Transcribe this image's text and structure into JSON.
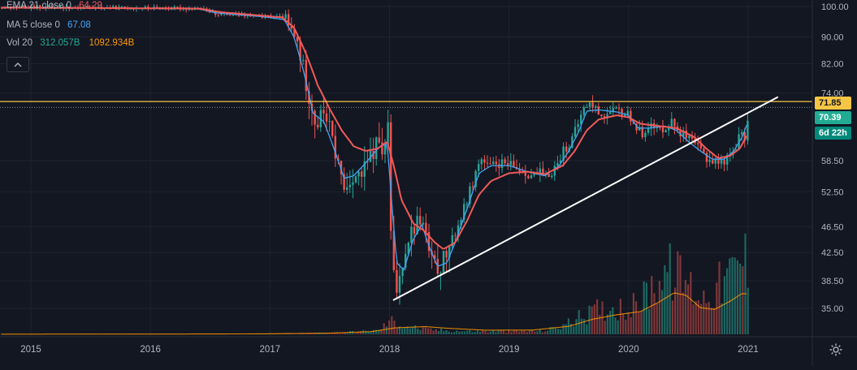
{
  "colors": {
    "background": "#131722",
    "grid": "#1f2330",
    "axis_text": "#b2b5be",
    "ema": "#f05a5a",
    "ma": "#42a5f5",
    "vol_label": "#22ab94",
    "vol_ma": "#ff9800",
    "up": "#26a69a",
    "down": "#ef5350",
    "horizontal_line": "#f7c544",
    "trend_line": "#ffffff",
    "countdown_bg": "#00897b"
  },
  "legend": [
    {
      "name": "EMA 21 close 0",
      "values": [
        "64.29"
      ],
      "color": "#f05a5a"
    },
    {
      "name": "MA 5 close 0",
      "values": [
        "67.08"
      ],
      "color": "#42a5f5"
    },
    {
      "name": "Vol 20",
      "values": [
        "312.057B",
        "1092.934B"
      ],
      "colors": [
        "#22ab94",
        "#ff9800"
      ]
    }
  ],
  "price_labels": {
    "line_level": "71.85",
    "last_price": "70.39",
    "countdown": "6d 22h"
  },
  "icons": {
    "collapse": "chevron-up-icon",
    "settings": "gear-icon"
  },
  "chart_data": {
    "type": "candlestick",
    "title": "",
    "xlabel": "",
    "ylabel": "",
    "x_ticks": [
      "2015",
      "2016",
      "2017",
      "2018",
      "2019",
      "2020",
      "2021"
    ],
    "y_ticks": [
      "100.00",
      "90.00",
      "82.00",
      "74.00",
      "58.50",
      "52.50",
      "46.50",
      "42.50",
      "38.50",
      "35.00"
    ],
    "y_scale": "log",
    "ylim": [
      32,
      101
    ],
    "xlim": [
      2014.7,
      2021.55
    ],
    "close_path": [
      [
        2014.75,
        99.6
      ],
      [
        2015.0,
        99.8
      ],
      [
        2015.3,
        99.7
      ],
      [
        2015.6,
        99.6
      ],
      [
        2015.9,
        99.5
      ],
      [
        2016.2,
        99.4
      ],
      [
        2016.4,
        99.2
      ],
      [
        2016.55,
        97.5
      ],
      [
        2016.75,
        97.0
      ],
      [
        2016.95,
        96.5
      ],
      [
        2017.1,
        96.2
      ],
      [
        2017.15,
        92.5
      ],
      [
        2017.22,
        88.0
      ],
      [
        2017.3,
        76.0
      ],
      [
        2017.38,
        66.0
      ],
      [
        2017.45,
        70.0
      ],
      [
        2017.5,
        64.0
      ],
      [
        2017.58,
        56.0
      ],
      [
        2017.62,
        52.5
      ],
      [
        2017.68,
        56.0
      ],
      [
        2017.75,
        55.0
      ],
      [
        2017.85,
        60.0
      ],
      [
        2017.9,
        63.0
      ],
      [
        2017.95,
        59.0
      ],
      [
        2017.98,
        67.0
      ],
      [
        2018.0,
        46.0
      ],
      [
        2018.03,
        38.5
      ],
      [
        2018.06,
        37.0
      ],
      [
        2018.1,
        41.5
      ],
      [
        2018.14,
        44.5
      ],
      [
        2018.2,
        46.5
      ],
      [
        2018.25,
        48.0
      ],
      [
        2018.3,
        45.0
      ],
      [
        2018.33,
        41.5
      ],
      [
        2018.38,
        40.0
      ],
      [
        2018.45,
        41.5
      ],
      [
        2018.52,
        44.5
      ],
      [
        2018.6,
        48.5
      ],
      [
        2018.7,
        55.0
      ],
      [
        2018.75,
        59.0
      ],
      [
        2018.82,
        57.0
      ],
      [
        2018.9,
        58.0
      ],
      [
        2019.0,
        57.5
      ],
      [
        2019.1,
        56.5
      ],
      [
        2019.2,
        55.5
      ],
      [
        2019.25,
        56.0
      ],
      [
        2019.3,
        55.0
      ],
      [
        2019.4,
        58.0
      ],
      [
        2019.45,
        61.0
      ],
      [
        2019.5,
        62.0
      ],
      [
        2019.55,
        65.0
      ],
      [
        2019.6,
        69.0
      ],
      [
        2019.65,
        71.5
      ],
      [
        2019.7,
        70.5
      ],
      [
        2019.75,
        69.0
      ],
      [
        2019.8,
        68.5
      ],
      [
        2019.9,
        69.5
      ],
      [
        2020.0,
        68.5
      ],
      [
        2020.05,
        66.0
      ],
      [
        2020.1,
        64.0
      ],
      [
        2020.15,
        66.5
      ],
      [
        2020.2,
        65.5
      ],
      [
        2020.25,
        65.0
      ],
      [
        2020.35,
        67.0
      ],
      [
        2020.45,
        64.0
      ],
      [
        2020.55,
        61.5
      ],
      [
        2020.6,
        60.5
      ],
      [
        2020.65,
        59.0
      ],
      [
        2020.7,
        58.5
      ],
      [
        2020.75,
        58.0
      ],
      [
        2020.82,
        59.0
      ],
      [
        2020.88,
        61.0
      ],
      [
        2020.92,
        64.0
      ],
      [
        2020.96,
        63.0
      ],
      [
        2020.99,
        67.0
      ],
      [
        2021.0,
        70.39
      ]
    ],
    "ema21": [
      [
        2014.75,
        99.6
      ],
      [
        2016.4,
        99.3
      ],
      [
        2016.6,
        98.0
      ],
      [
        2016.95,
        96.8
      ],
      [
        2017.1,
        96.3
      ],
      [
        2017.2,
        93.0
      ],
      [
        2017.3,
        85.0
      ],
      [
        2017.4,
        76.0
      ],
      [
        2017.5,
        70.0
      ],
      [
        2017.6,
        65.0
      ],
      [
        2017.7,
        61.5
      ],
      [
        2017.8,
        60.5
      ],
      [
        2017.9,
        61.0
      ],
      [
        2017.98,
        62.5
      ],
      [
        2018.03,
        58.0
      ],
      [
        2018.1,
        51.0
      ],
      [
        2018.2,
        47.0
      ],
      [
        2018.28,
        46.0
      ],
      [
        2018.38,
        44.0
      ],
      [
        2018.45,
        43.0
      ],
      [
        2018.55,
        44.0
      ],
      [
        2018.65,
        47.5
      ],
      [
        2018.75,
        52.0
      ],
      [
        2018.85,
        54.5
      ],
      [
        2019.0,
        56.0
      ],
      [
        2019.15,
        56.3
      ],
      [
        2019.3,
        55.8
      ],
      [
        2019.45,
        57.5
      ],
      [
        2019.55,
        60.5
      ],
      [
        2019.65,
        65.0
      ],
      [
        2019.75,
        67.5
      ],
      [
        2019.9,
        68.5
      ],
      [
        2020.0,
        68.0
      ],
      [
        2020.1,
        66.5
      ],
      [
        2020.25,
        66.0
      ],
      [
        2020.4,
        65.5
      ],
      [
        2020.55,
        63.5
      ],
      [
        2020.65,
        61.0
      ],
      [
        2020.75,
        59.0
      ],
      [
        2020.85,
        59.5
      ],
      [
        2020.93,
        61.0
      ],
      [
        2021.0,
        64.29
      ]
    ],
    "ma5": [
      [
        2014.75,
        99.6
      ],
      [
        2016.4,
        99.2
      ],
      [
        2016.55,
        97.8
      ],
      [
        2016.95,
        96.5
      ],
      [
        2017.12,
        95.5
      ],
      [
        2017.2,
        90.0
      ],
      [
        2017.28,
        80.0
      ],
      [
        2017.36,
        69.0
      ],
      [
        2017.45,
        67.0
      ],
      [
        2017.55,
        60.0
      ],
      [
        2017.62,
        55.0
      ],
      [
        2017.7,
        55.5
      ],
      [
        2017.8,
        58.0
      ],
      [
        2017.92,
        61.5
      ],
      [
        2017.98,
        62.0
      ],
      [
        2018.02,
        50.0
      ],
      [
        2018.06,
        41.0
      ],
      [
        2018.12,
        40.0
      ],
      [
        2018.2,
        44.5
      ],
      [
        2018.27,
        46.8
      ],
      [
        2018.33,
        43.5
      ],
      [
        2018.4,
        40.5
      ],
      [
        2018.48,
        41.0
      ],
      [
        2018.55,
        44.0
      ],
      [
        2018.65,
        49.5
      ],
      [
        2018.75,
        56.0
      ],
      [
        2018.85,
        57.5
      ],
      [
        2019.0,
        57.5
      ],
      [
        2019.15,
        56.3
      ],
      [
        2019.3,
        55.5
      ],
      [
        2019.42,
        57.5
      ],
      [
        2019.5,
        60.5
      ],
      [
        2019.58,
        64.5
      ],
      [
        2019.65,
        69.5
      ],
      [
        2019.75,
        69.8
      ],
      [
        2019.9,
        69.3
      ],
      [
        2020.0,
        68.5
      ],
      [
        2020.08,
        65.5
      ],
      [
        2020.18,
        65.5
      ],
      [
        2020.3,
        66.0
      ],
      [
        2020.4,
        65.0
      ],
      [
        2020.5,
        62.5
      ],
      [
        2020.6,
        60.5
      ],
      [
        2020.7,
        58.8
      ],
      [
        2020.8,
        58.8
      ],
      [
        2020.88,
        60.5
      ],
      [
        2020.95,
        63.5
      ],
      [
        2021.0,
        67.08
      ]
    ],
    "volume_scale_max": 1700,
    "volume_profile": [
      [
        2014.75,
        5
      ],
      [
        2016.0,
        8
      ],
      [
        2017.0,
        12
      ],
      [
        2017.5,
        25
      ],
      [
        2017.9,
        70
      ],
      [
        2018.0,
        260
      ],
      [
        2018.1,
        170
      ],
      [
        2018.3,
        90
      ],
      [
        2018.6,
        60
      ],
      [
        2019.0,
        55
      ],
      [
        2019.3,
        70
      ],
      [
        2019.45,
        170
      ],
      [
        2019.6,
        330
      ],
      [
        2019.75,
        470
      ],
      [
        2019.9,
        520
      ],
      [
        2020.0,
        460
      ],
      [
        2020.1,
        640
      ],
      [
        2020.2,
        940
      ],
      [
        2020.3,
        1200
      ],
      [
        2020.45,
        1050
      ],
      [
        2020.55,
        820
      ],
      [
        2020.62,
        700
      ],
      [
        2020.7,
        860
      ],
      [
        2020.8,
        1000
      ],
      [
        2020.88,
        1200
      ],
      [
        2020.95,
        1450
      ],
      [
        2021.0,
        1300
      ]
    ],
    "volume_ma": [
      [
        2014.75,
        3
      ],
      [
        2016.5,
        5
      ],
      [
        2017.0,
        9
      ],
      [
        2017.5,
        20
      ],
      [
        2017.85,
        45
      ],
      [
        2018.05,
        110
      ],
      [
        2018.3,
        130
      ],
      [
        2018.5,
        100
      ],
      [
        2018.8,
        70
      ],
      [
        2019.2,
        72
      ],
      [
        2019.5,
        135
      ],
      [
        2019.7,
        255
      ],
      [
        2019.9,
        330
      ],
      [
        2020.1,
        385
      ],
      [
        2020.25,
        540
      ],
      [
        2020.38,
        700
      ],
      [
        2020.48,
        660
      ],
      [
        2020.6,
        450
      ],
      [
        2020.72,
        420
      ],
      [
        2020.85,
        560
      ],
      [
        2020.95,
        690
      ],
      [
        2021.0,
        680
      ]
    ],
    "horizontal_line": 71.85,
    "trend_line": {
      "from": [
        2018.03,
        36.0
      ],
      "to": [
        2021.25,
        73.0
      ]
    },
    "legend_position": "top-left",
    "grid": true
  }
}
